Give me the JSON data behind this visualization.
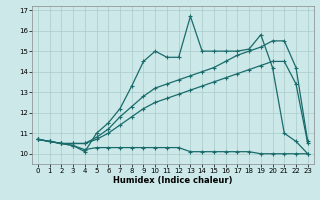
{
  "title": "",
  "xlabel": "Humidex (Indice chaleur)",
  "background_color": "#cce8e8",
  "grid_color": "#aacccc",
  "line_color": "#1a6b6b",
  "xlim": [
    -0.5,
    23.5
  ],
  "ylim": [
    9.5,
    17.2
  ],
  "xticks": [
    0,
    1,
    2,
    3,
    4,
    5,
    6,
    7,
    8,
    9,
    10,
    11,
    12,
    13,
    14,
    15,
    16,
    17,
    18,
    19,
    20,
    21,
    22,
    23
  ],
  "yticks": [
    10,
    11,
    12,
    13,
    14,
    15,
    16,
    17
  ],
  "series": [
    {
      "x": [
        0,
        1,
        2,
        3,
        4,
        5,
        6,
        7,
        8,
        9,
        10,
        11,
        12,
        13,
        14,
        15,
        16,
        17,
        18,
        19,
        20,
        21,
        22,
        23
      ],
      "y": [
        10.7,
        10.6,
        10.5,
        10.4,
        10.2,
        10.3,
        10.3,
        10.3,
        10.3,
        10.3,
        10.3,
        10.3,
        10.3,
        10.1,
        10.1,
        10.1,
        10.1,
        10.1,
        10.1,
        10.0,
        10.0,
        10.0,
        10.0,
        10.0
      ],
      "marker": "+",
      "markersize": 3,
      "linestyle": "-",
      "linewidth": 0.9
    },
    {
      "x": [
        0,
        1,
        2,
        3,
        4,
        5,
        6,
        7,
        8,
        9,
        10,
        11,
        12,
        13,
        14,
        15,
        16,
        17,
        18,
        19,
        20,
        21,
        22,
        23
      ],
      "y": [
        10.7,
        10.6,
        10.5,
        10.5,
        10.5,
        10.7,
        11.0,
        11.4,
        11.8,
        12.2,
        12.5,
        12.7,
        12.9,
        13.1,
        13.3,
        13.5,
        13.7,
        13.9,
        14.1,
        14.3,
        14.5,
        14.5,
        13.4,
        10.5
      ],
      "marker": "+",
      "markersize": 3,
      "linestyle": "-",
      "linewidth": 0.9
    },
    {
      "x": [
        0,
        1,
        2,
        3,
        4,
        5,
        6,
        7,
        8,
        9,
        10,
        11,
        12,
        13,
        14,
        15,
        16,
        17,
        18,
        19,
        20,
        21,
        22,
        23
      ],
      "y": [
        10.7,
        10.6,
        10.5,
        10.5,
        10.5,
        10.8,
        11.2,
        11.8,
        12.3,
        12.8,
        13.2,
        13.4,
        13.6,
        13.8,
        14.0,
        14.2,
        14.5,
        14.8,
        15.0,
        15.2,
        15.5,
        15.5,
        14.2,
        10.6
      ],
      "marker": "+",
      "markersize": 3,
      "linestyle": "-",
      "linewidth": 0.9
    },
    {
      "x": [
        0,
        1,
        2,
        3,
        4,
        5,
        6,
        7,
        8,
        9,
        10,
        11,
        12,
        13,
        14,
        15,
        16,
        17,
        18,
        19,
        20,
        21,
        22,
        23
      ],
      "y": [
        10.7,
        10.6,
        10.5,
        10.4,
        10.1,
        11.0,
        11.5,
        12.2,
        13.3,
        14.5,
        15.0,
        14.7,
        14.7,
        16.7,
        15.0,
        15.0,
        15.0,
        15.0,
        15.1,
        15.8,
        14.2,
        11.0,
        10.6,
        10.0
      ],
      "marker": "+",
      "markersize": 3,
      "linestyle": "-",
      "linewidth": 0.9
    }
  ]
}
